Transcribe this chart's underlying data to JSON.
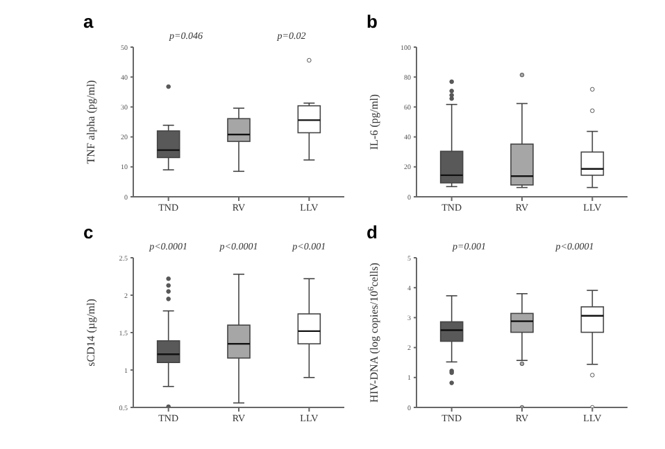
{
  "chart_data": [
    {
      "type": "box",
      "title": "a",
      "ylabel": "TNF alpha (pg/ml)",
      "categories": [
        "TND",
        "RV",
        "LLV"
      ],
      "colors": [
        "#595959",
        "#a6a6a6",
        "#ffffff"
      ],
      "ylim": [
        0,
        50
      ],
      "yticks": [
        0,
        10,
        20,
        30,
        40,
        50
      ],
      "boxes": [
        {
          "low": 9.0,
          "q1": 13.1,
          "median": 15.6,
          "q3": 22.0,
          "high": 23.9,
          "outliers": [
            36.8
          ]
        },
        {
          "low": 8.5,
          "q1": 18.5,
          "median": 20.8,
          "q3": 26.1,
          "high": 29.6
        },
        {
          "low": 12.3,
          "q1": 21.4,
          "median": 25.6,
          "q3": 30.4,
          "high": 31.3,
          "outliers": [
            45.6
          ]
        }
      ],
      "annotations": [
        "p=0.046",
        "p=0.02"
      ]
    },
    {
      "type": "box",
      "title": "b",
      "ylabel": "IL-6 (pg/ml)",
      "categories": [
        "TND",
        "RV",
        "LLV"
      ],
      "colors": [
        "#595959",
        "#a6a6a6",
        "#ffffff"
      ],
      "ylim": [
        0,
        100
      ],
      "yticks": [
        0,
        20,
        40,
        60,
        80,
        100
      ],
      "boxes": [
        {
          "low": 6.8,
          "q1": 9.3,
          "median": 14.4,
          "q3": 30.4,
          "high": 61.7,
          "outliers": [
            65.6,
            67.9,
            70.7,
            76.9
          ]
        },
        {
          "low": 6.2,
          "q1": 7.9,
          "median": 13.8,
          "q3": 35.2,
          "high": 62.3,
          "outliers": [
            81.4
          ]
        },
        {
          "low": 6.2,
          "q1": 14.4,
          "median": 18.6,
          "q3": 29.9,
          "high": 43.7,
          "outliers": [
            57.5,
            71.8
          ]
        }
      ]
    },
    {
      "type": "box",
      "title": "c",
      "ylabel": "sCD14 (µg/ml)",
      "categories": [
        "TND",
        "RV",
        "LLV"
      ],
      "colors": [
        "#595959",
        "#a6a6a6",
        "#ffffff"
      ],
      "ylim": [
        0.5,
        2.5
      ],
      "yticks": [
        0.5,
        1.0,
        1.5,
        2.0,
        2.5
      ],
      "boxes": [
        {
          "low": 0.78,
          "q1": 1.1,
          "median": 1.21,
          "q3": 1.39,
          "high": 1.79,
          "outliers": [
            0.51,
            1.95,
            2.05,
            2.13,
            2.22
          ]
        },
        {
          "low": 0.56,
          "q1": 1.16,
          "median": 1.35,
          "q3": 1.6,
          "high": 2.28
        },
        {
          "low": 0.9,
          "q1": 1.35,
          "median": 1.52,
          "q3": 1.75,
          "high": 2.22
        }
      ],
      "annotations": [
        "p<0.0001",
        "p<0.0001",
        "p<0.001"
      ]
    },
    {
      "type": "box",
      "title": "d",
      "ylabel": "HIV-DNA (log copies/10$^{6}$cells)",
      "categories": [
        "TND",
        "RV",
        "LLV"
      ],
      "colors": [
        "#595959",
        "#a6a6a6",
        "#ffffff"
      ],
      "ylim": [
        0,
        5
      ],
      "yticks": [
        0,
        1,
        2,
        3,
        4,
        5
      ],
      "boxes": [
        {
          "low": 1.52,
          "q1": 2.21,
          "median": 2.58,
          "q3": 2.86,
          "high": 3.73,
          "outliers": [
            1.22,
            1.16,
            0.82
          ]
        },
        {
          "low": 1.57,
          "q1": 2.51,
          "median": 2.88,
          "q3": 3.14,
          "high": 3.8,
          "outliers": [
            1.46,
            0
          ]
        },
        {
          "low": 1.44,
          "q1": 2.51,
          "median": 3.06,
          "q3": 3.36,
          "high": 3.91,
          "outliers": [
            1.08,
            0
          ]
        }
      ],
      "annotations": [
        "p=0.001",
        "p<0.0001"
      ]
    }
  ]
}
